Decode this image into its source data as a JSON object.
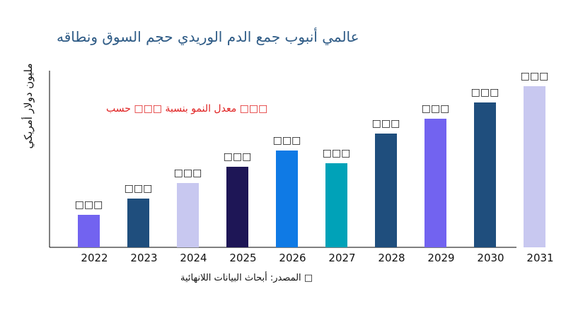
{
  "chart_data": {
    "type": "bar",
    "title": "عالمي أنبوب جمع الدم الوريدي حجم السوق ونطاقه",
    "ylabel": "مليون دولار أمريكي",
    "annotation": "معدل النمو بنسبة □□□ حسب □□□",
    "source": "المصدر: أبحاث البيانات اللانهائية □",
    "categories": [
      "2022",
      "2023",
      "2024",
      "2025",
      "2026",
      "2027",
      "2028",
      "2029",
      "2030",
      "2031"
    ],
    "values": [
      46,
      69,
      91,
      114,
      137,
      119,
      161,
      182,
      205,
      228
    ],
    "data_labels": [
      "□□□",
      "□□□",
      "□□□",
      "□□□",
      "□□□",
      "□□□",
      "□□□",
      "□□□",
      "□□□",
      "□□□"
    ],
    "colors": [
      "#7263f0",
      "#1f4e7d",
      "#c8c8f0",
      "#1e1656",
      "#0f7ae5",
      "#00a2b8",
      "#1f4e7d",
      "#7263f0",
      "#1f4e7d",
      "#c8c8f0"
    ],
    "ylim": [
      0,
      250
    ],
    "grid": false,
    "legend": "none"
  }
}
